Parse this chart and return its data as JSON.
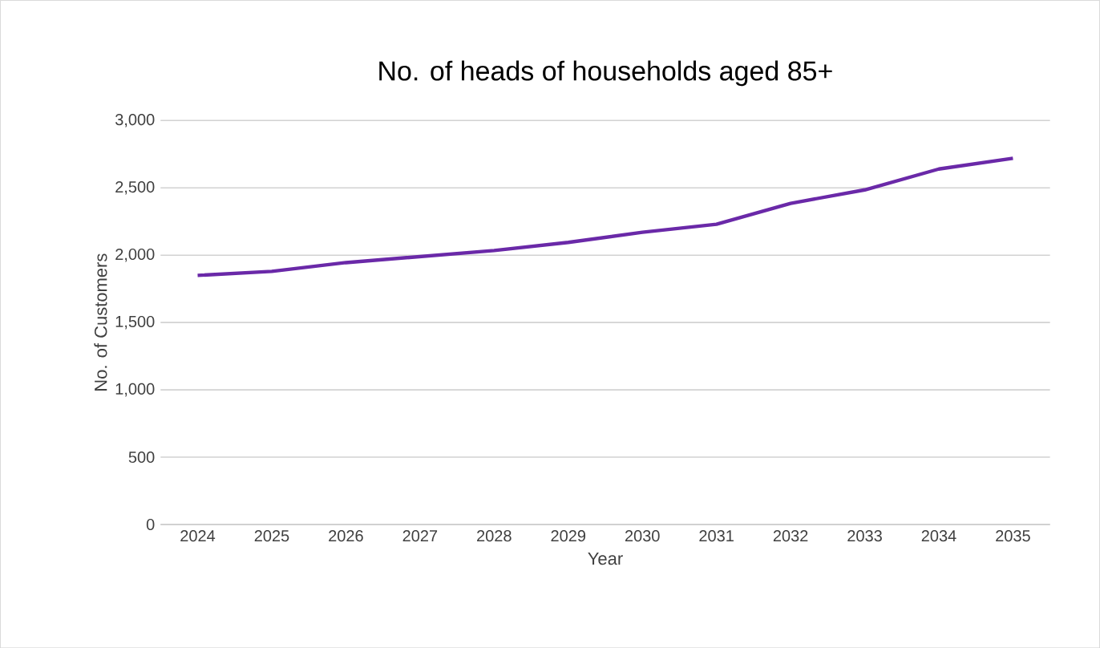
{
  "chart_data": {
    "type": "line",
    "title": "No. of heads of households aged 85+",
    "xlabel": "Year",
    "ylabel": "No. of Customers",
    "categories": [
      "2024",
      "2025",
      "2026",
      "2027",
      "2028",
      "2029",
      "2030",
      "2031",
      "2032",
      "2033",
      "2034",
      "2035"
    ],
    "series": [
      {
        "color": "#6a29a8",
        "values": [
          1850,
          1880,
          1945,
          1990,
          2035,
          2095,
          2170,
          2230,
          2385,
          2485,
          2640,
          2720
        ]
      }
    ],
    "ylim": [
      0,
      3000
    ],
    "yticks": [
      {
        "value": 0,
        "label": "0"
      },
      {
        "value": 500,
        "label": "500"
      },
      {
        "value": 1000,
        "label": "1,000"
      },
      {
        "value": 1500,
        "label": "1,500"
      },
      {
        "value": 2000,
        "label": "2,000"
      },
      {
        "value": 2500,
        "label": "2,500"
      },
      {
        "value": 3000,
        "label": "3,000"
      }
    ],
    "grid": "y",
    "legend": false,
    "marker": "none",
    "line_style": "solid"
  }
}
